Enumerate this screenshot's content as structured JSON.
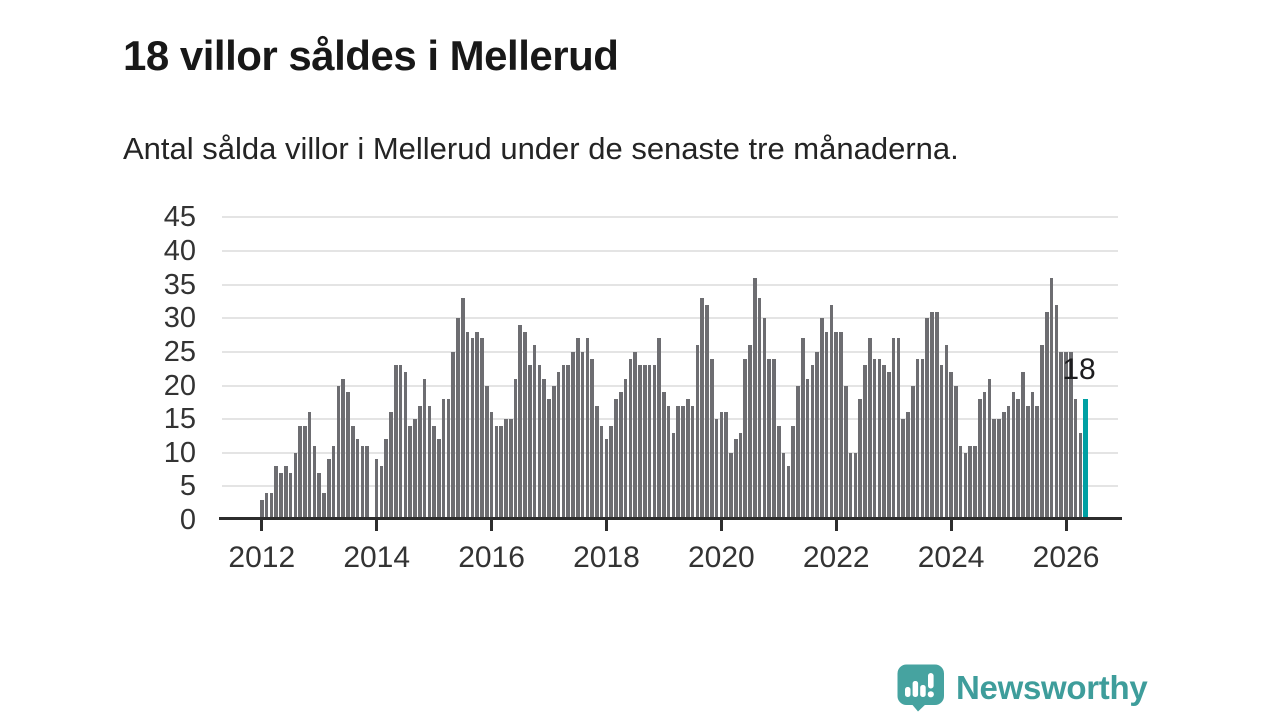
{
  "header": {
    "title": "18 villor såldes i Mellerud",
    "subtitle": "Antal sålda villor i Mellerud under de senaste tre månaderna."
  },
  "chart_data": {
    "type": "bar",
    "title": "18 villor såldes i Mellerud",
    "subtitle": "Antal sålda villor i Mellerud under de senaste tre månaderna.",
    "x_unit": "month",
    "x_range": [
      "2012",
      "2026"
    ],
    "x_tick_labels": [
      "2012",
      "2014",
      "2016",
      "2018",
      "2020",
      "2022",
      "2024",
      "2026"
    ],
    "x_tick_every": 24,
    "y_ticks": [
      0,
      5,
      10,
      15,
      20,
      25,
      30,
      35,
      40,
      45
    ],
    "ylim": [
      0,
      45
    ],
    "grid": true,
    "bar_color": "#6d6d71",
    "values": [
      3,
      4,
      4,
      8,
      7,
      8,
      7,
      10,
      14,
      14,
      16,
      11,
      7,
      4,
      9,
      11,
      20,
      21,
      19,
      14,
      12,
      11,
      11,
      0,
      9,
      8,
      12,
      16,
      23,
      23,
      22,
      14,
      15,
      17,
      21,
      17,
      14,
      12,
      18,
      18,
      25,
      30,
      33,
      28,
      27,
      28,
      27,
      20,
      16,
      14,
      14,
      15,
      15,
      21,
      29,
      28,
      23,
      26,
      23,
      21,
      18,
      20,
      22,
      23,
      23,
      25,
      27,
      25,
      27,
      24,
      17,
      14,
      12,
      14,
      18,
      19,
      21,
      24,
      25,
      23,
      23,
      23,
      23,
      27,
      19,
      17,
      13,
      17,
      17,
      18,
      17,
      26,
      33,
      32,
      24,
      15,
      16,
      16,
      10,
      12,
      13,
      24,
      26,
      36,
      33,
      30,
      24,
      24,
      14,
      10,
      8,
      14,
      20,
      27,
      21,
      23,
      25,
      30,
      28,
      32,
      28,
      28,
      20,
      10,
      10,
      18,
      23,
      27,
      24,
      24,
      23,
      22,
      27,
      27,
      15,
      16,
      20,
      24,
      24,
      30,
      31,
      31,
      23,
      26,
      22,
      20,
      11,
      10,
      11,
      11,
      18,
      19,
      21,
      15,
      15,
      16,
      17,
      19,
      18,
      22,
      17,
      19,
      17,
      26,
      31,
      36,
      32,
      25,
      25,
      25,
      18,
      13,
      18
    ],
    "highlight": {
      "position": "last",
      "value": 18,
      "label": "18",
      "color": "#00a0a3"
    }
  },
  "footer": {
    "brand": "Newsworthy"
  },
  "colors": {
    "title": "#181818",
    "text": "#333333",
    "grid": "#e4e4e4",
    "axis": "#2d2d2d",
    "bar": "#6d6d71",
    "highlight": "#00a0a3",
    "brand": "#3e9d9b"
  }
}
